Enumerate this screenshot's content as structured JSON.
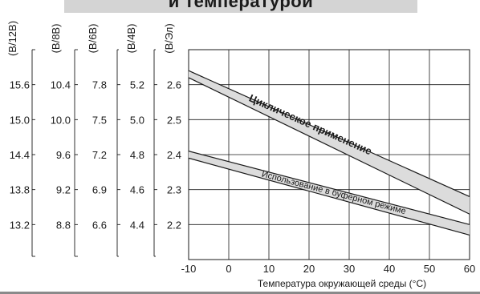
{
  "header": {
    "title_fragment": "и температурой"
  },
  "chart_data": {
    "type": "line",
    "xlabel": "Температура окружающей среды (°C)",
    "x_ticks": [
      "-10",
      "0",
      "10",
      "20",
      "30",
      "40",
      "50",
      "60"
    ],
    "xlim": [
      -10,
      60
    ],
    "ylim": [
      2.1,
      2.7
    ],
    "grid": true,
    "primary_axis": {
      "label": "(В/Эл)",
      "ticks": [
        "2.6",
        "2.5",
        "2.4",
        "2.3",
        "2.2"
      ],
      "tick_values": [
        2.6,
        2.5,
        2.4,
        2.3,
        2.2
      ]
    },
    "secondary_axes": [
      {
        "label": "(В/12В)",
        "ticks": [
          "15.6",
          "15.0",
          "14.4",
          "13.8",
          "13.2"
        ]
      },
      {
        "label": "(В/8В)",
        "ticks": [
          "10.4",
          "10.0",
          "9.6",
          "9.2",
          "8.8"
        ]
      },
      {
        "label": "(В/6В)",
        "ticks": [
          "7.8",
          "7.5",
          "7.2",
          "6.9",
          "6.6"
        ]
      },
      {
        "label": "(В/4В)",
        "ticks": [
          "5.2",
          "5.0",
          "4.8",
          "4.6",
          "4.4"
        ]
      }
    ],
    "bands": [
      {
        "name": "Циклическое применение",
        "upper": {
          "x": [
            -10,
            60
          ],
          "y": [
            2.64,
            2.28
          ]
        },
        "lower": {
          "x": [
            -10,
            60
          ],
          "y": [
            2.62,
            2.23
          ]
        }
      },
      {
        "name": "Использование в буферном режиме",
        "upper": {
          "x": [
            -10,
            60
          ],
          "y": [
            2.41,
            2.2
          ]
        },
        "lower": {
          "x": [
            -10,
            60
          ],
          "y": [
            2.39,
            2.17
          ]
        }
      }
    ],
    "colors": {
      "line": "#1a1a1a",
      "grid": "#1a1a1a",
      "band_fill": "#dcdcdc"
    }
  }
}
